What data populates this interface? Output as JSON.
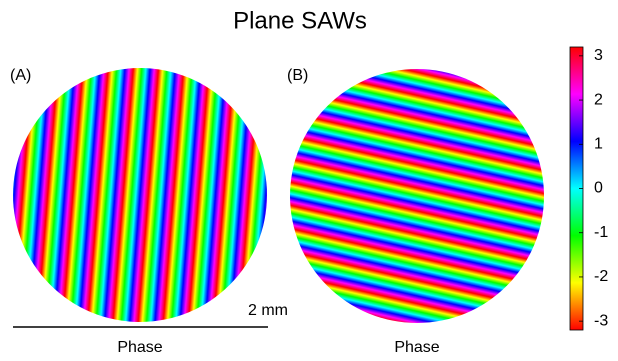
{
  "chart_data": {
    "type": "phase-map",
    "title": "Plane SAWs",
    "panels": [
      {
        "label": "(A)",
        "xlabel": "Phase"
      },
      {
        "label": "(B)",
        "xlabel": "Phase"
      }
    ],
    "scale_bar": "2 mm",
    "colormap": [
      "#ff0000",
      "#ffff00",
      "#00ff00",
      "#00ffff",
      "#0000ff",
      "#ff00ff",
      "#ff0000"
    ],
    "clim": [
      -3.2,
      3.2
    ],
    "cticks": [
      3,
      2,
      1,
      0,
      -1,
      -2,
      -3
    ]
  }
}
